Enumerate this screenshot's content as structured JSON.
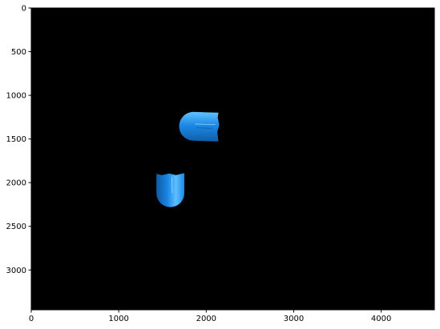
{
  "chart_data": {
    "type": "image",
    "title": "",
    "xlabel": "",
    "ylabel": "",
    "xlim": [
      0,
      4608
    ],
    "ylim": [
      3456,
      0
    ],
    "y_inverted": true,
    "xticks": [
      0,
      1000,
      2000,
      3000,
      4000
    ],
    "xtick_labels": [
      "0",
      "1000",
      "2000",
      "3000",
      "4000"
    ],
    "yticks": [
      0,
      500,
      1000,
      1500,
      2000,
      2500,
      3000
    ],
    "ytick_labels": [
      "0",
      "500",
      "1000",
      "1500",
      "2000",
      "2500",
      "3000"
    ],
    "grid": false,
    "background_color": "#000000",
    "objects": [
      {
        "name": "capsule-horizontal",
        "shape": "capsule",
        "orientation": "rounded-left",
        "x_range": [
          1690,
          2140
        ],
        "y_range": [
          1190,
          1520
        ],
        "colors": [
          "#1c88e6",
          "#62c3ff",
          "#0f5fa8"
        ]
      },
      {
        "name": "capsule-vertical",
        "shape": "capsule",
        "orientation": "rounded-bottom",
        "x_range": [
          1430,
          1750
        ],
        "y_range": [
          1900,
          2280
        ],
        "colors": [
          "#1a86e4",
          "#5ec0ff",
          "#0e5aa2"
        ]
      }
    ]
  }
}
